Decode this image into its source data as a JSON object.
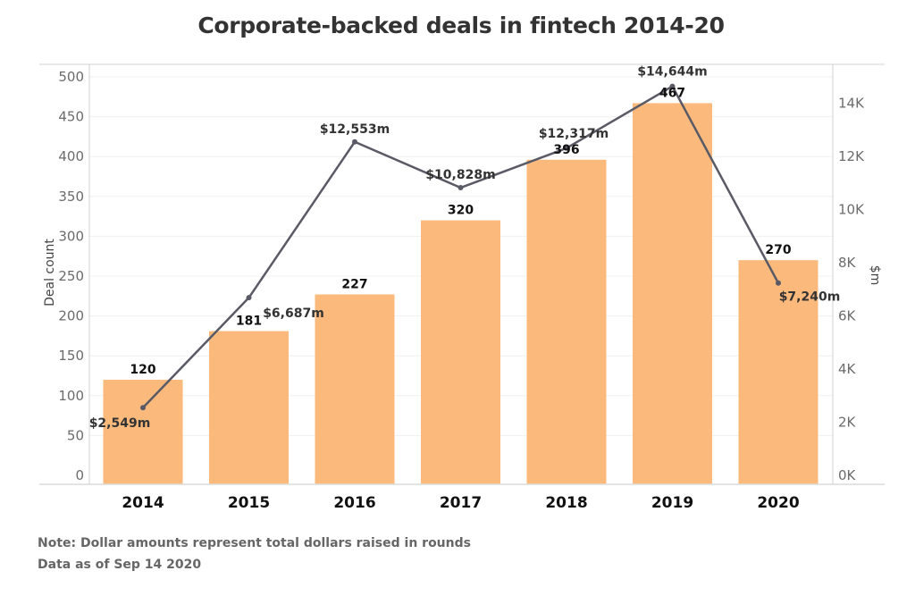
{
  "chart_data": {
    "type": "bar+line",
    "title": "Corporate-backed deals in fintech 2014-20",
    "categories": [
      "2014",
      "2015",
      "2016",
      "2017",
      "2018",
      "2019",
      "2020"
    ],
    "series": [
      {
        "name": "Deal count",
        "type": "bar",
        "axis": "left",
        "color": "#fbba7c",
        "values": [
          120,
          181,
          227,
          320,
          396,
          467,
          270
        ],
        "labels": [
          "120",
          "181",
          "227",
          "320",
          "396",
          "467",
          "270"
        ]
      },
      {
        "name": "$m",
        "type": "line",
        "axis": "right",
        "color": "#5a5a66",
        "values": [
          2549,
          6687,
          12553,
          10828,
          12317,
          14644,
          7240
        ],
        "labels": [
          "$2,549m",
          "$6,687m",
          "$12,553m",
          "$10,828m",
          "$12,317m",
          "$14,644m",
          "$7,240m"
        ]
      }
    ],
    "left_axis": {
      "label": "Deal count",
      "ylim": [
        0,
        500
      ],
      "ticks": [
        "0",
        "50",
        "100",
        "150",
        "200",
        "250",
        "300",
        "350",
        "400",
        "450",
        "500"
      ]
    },
    "right_axis": {
      "label": "$m",
      "ylim": [
        0,
        15000
      ],
      "tick_values": [
        0,
        2000,
        4000,
        6000,
        8000,
        10000,
        12000,
        14000
      ],
      "ticks": [
        "0K",
        "2K",
        "4K",
        "6K",
        "8K",
        "10K",
        "12K",
        "14K"
      ]
    },
    "grid": true,
    "legend": "none"
  },
  "notes": {
    "line1": "Note: Dollar amounts represent total dollars raised in rounds",
    "line2": "Data as of Sep 14 2020"
  }
}
